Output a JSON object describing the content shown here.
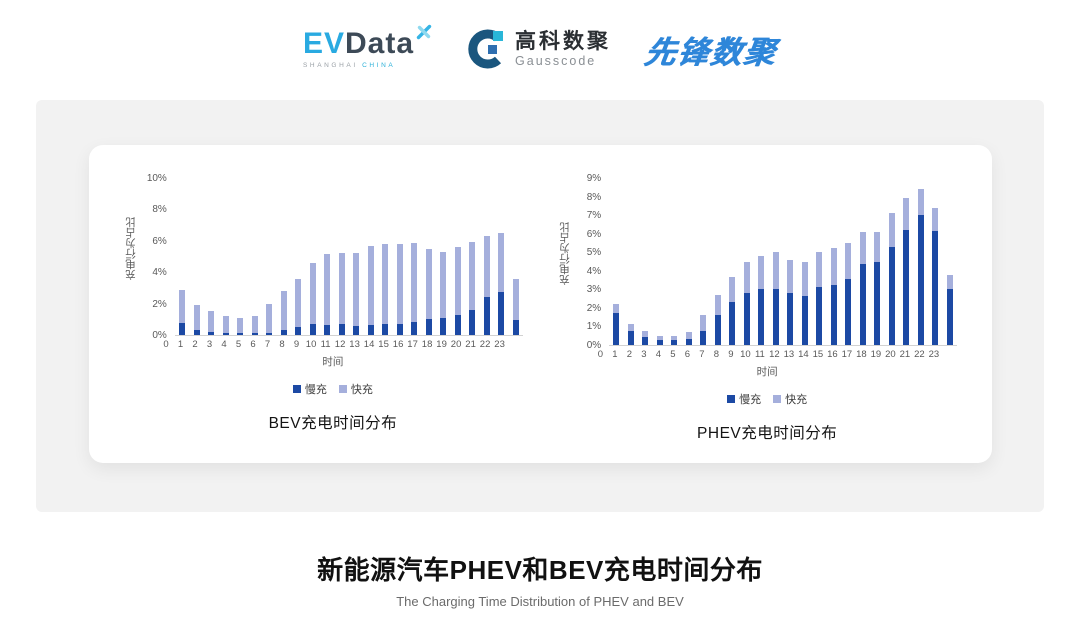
{
  "logos": {
    "evdata": {
      "ev": "EV",
      "data": "Data",
      "sub_left": "SHANGHAI",
      "sub_right": "CHINA"
    },
    "gausscode": {
      "cn": "高科数聚",
      "en": "Gausscode"
    },
    "xianfeng": {
      "text": "先锋数聚"
    }
  },
  "footer": {
    "title": "新能源汽车PHEV和BEV充电时间分布",
    "subtitle": "The Charging Time Distribution of PHEV and BEV"
  },
  "chart_data": [
    {
      "type": "bar",
      "stacked": true,
      "title": "BEV充电时间分布",
      "xlabel": "时间",
      "ylabel": "充电行为占比",
      "legend_position": "bottom",
      "grid": false,
      "ylim": [
        0,
        10
      ],
      "ytick_labels": [
        "0%",
        "2%",
        "4%",
        "6%",
        "8%",
        "10%"
      ],
      "ytick_values": [
        0,
        2,
        4,
        6,
        8,
        10
      ],
      "categories": [
        "0",
        "1",
        "2",
        "3",
        "4",
        "5",
        "6",
        "7",
        "8",
        "9",
        "10",
        "11",
        "12",
        "13",
        "14",
        "15",
        "16",
        "17",
        "18",
        "19",
        "20",
        "21",
        "22",
        "23"
      ],
      "series": [
        {
          "name": "慢充",
          "color": "#1c49a4",
          "values": [
            0.75,
            0.35,
            0.2,
            0.1,
            0.1,
            0.1,
            0.15,
            0.35,
            0.5,
            0.7,
            0.65,
            0.7,
            0.6,
            0.65,
            0.7,
            0.7,
            0.8,
            1.0,
            1.1,
            1.3,
            1.6,
            2.4,
            2.75,
            0.95
          ]
        },
        {
          "name": "快充",
          "color": "#a5afdc",
          "values": [
            2.1,
            1.55,
            1.3,
            1.1,
            1.0,
            1.1,
            1.85,
            2.45,
            3.05,
            3.9,
            4.5,
            4.55,
            4.6,
            5.0,
            5.1,
            5.1,
            5.05,
            4.5,
            4.2,
            4.3,
            4.3,
            3.9,
            3.75,
            2.6
          ]
        }
      ]
    },
    {
      "type": "bar",
      "stacked": true,
      "title": "PHEV充电时间分布",
      "xlabel": "时间",
      "ylabel": "充电行为占比",
      "legend_position": "bottom",
      "grid": false,
      "ylim": [
        0,
        9
      ],
      "ytick_labels": [
        "0%",
        "1%",
        "2%",
        "3%",
        "4%",
        "5%",
        "6%",
        "7%",
        "8%",
        "9%"
      ],
      "ytick_values": [
        0,
        1,
        2,
        3,
        4,
        5,
        6,
        7,
        8,
        9
      ],
      "categories": [
        "0",
        "1",
        "2",
        "3",
        "4",
        "5",
        "6",
        "7",
        "8",
        "9",
        "10",
        "11",
        "12",
        "13",
        "14",
        "15",
        "16",
        "17",
        "18",
        "19",
        "20",
        "21",
        "22",
        "23"
      ],
      "series": [
        {
          "name": "慢充",
          "color": "#1c49a4",
          "values": [
            1.75,
            0.75,
            0.45,
            0.25,
            0.25,
            0.3,
            0.75,
            1.6,
            2.3,
            2.8,
            3.0,
            3.0,
            2.8,
            2.65,
            3.1,
            3.25,
            3.55,
            4.35,
            4.5,
            5.3,
            6.2,
            7.0,
            6.15,
            3.0
          ]
        },
        {
          "name": "快充",
          "color": "#a5afdc",
          "values": [
            0.45,
            0.4,
            0.3,
            0.25,
            0.25,
            0.4,
            0.85,
            1.1,
            1.35,
            1.7,
            1.8,
            2.0,
            1.8,
            1.85,
            1.9,
            2.0,
            1.95,
            1.75,
            1.6,
            1.8,
            1.75,
            1.4,
            1.25,
            0.8
          ]
        }
      ]
    }
  ]
}
